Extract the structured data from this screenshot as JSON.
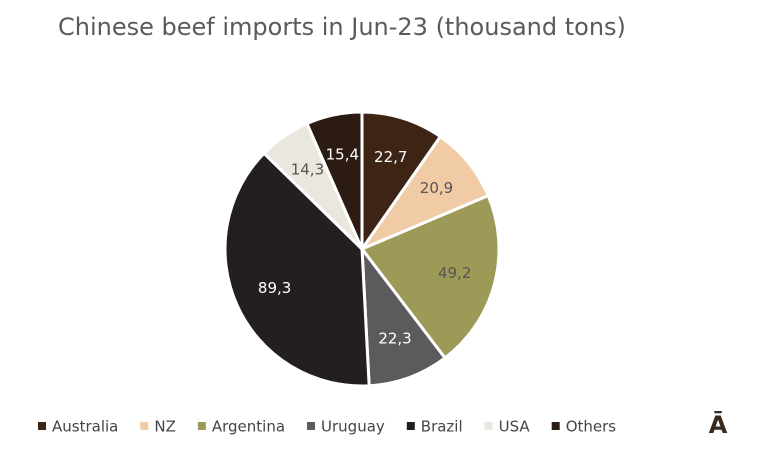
{
  "chart_data": {
    "type": "pie",
    "title": "Chinese beef imports in Jun-23 (thousand tons)",
    "categories": [
      "Australia",
      "NZ",
      "Argentina",
      "Uruguay",
      "Brazil",
      "USA",
      "Others"
    ],
    "values": [
      22.7,
      20.9,
      49.2,
      22.3,
      89.3,
      14.3,
      15.4
    ],
    "value_labels": [
      "22,7",
      "20,9",
      "49,2",
      "22,3",
      "89,3",
      "14,3",
      "15,4"
    ],
    "colors": [
      "#3d2415",
      "#f1caa6",
      "#9d9a57",
      "#5b5b5d",
      "#231f20",
      "#e9e7de",
      "#2b1b12"
    ],
    "legend": "bottom"
  },
  "logo": "Ā"
}
